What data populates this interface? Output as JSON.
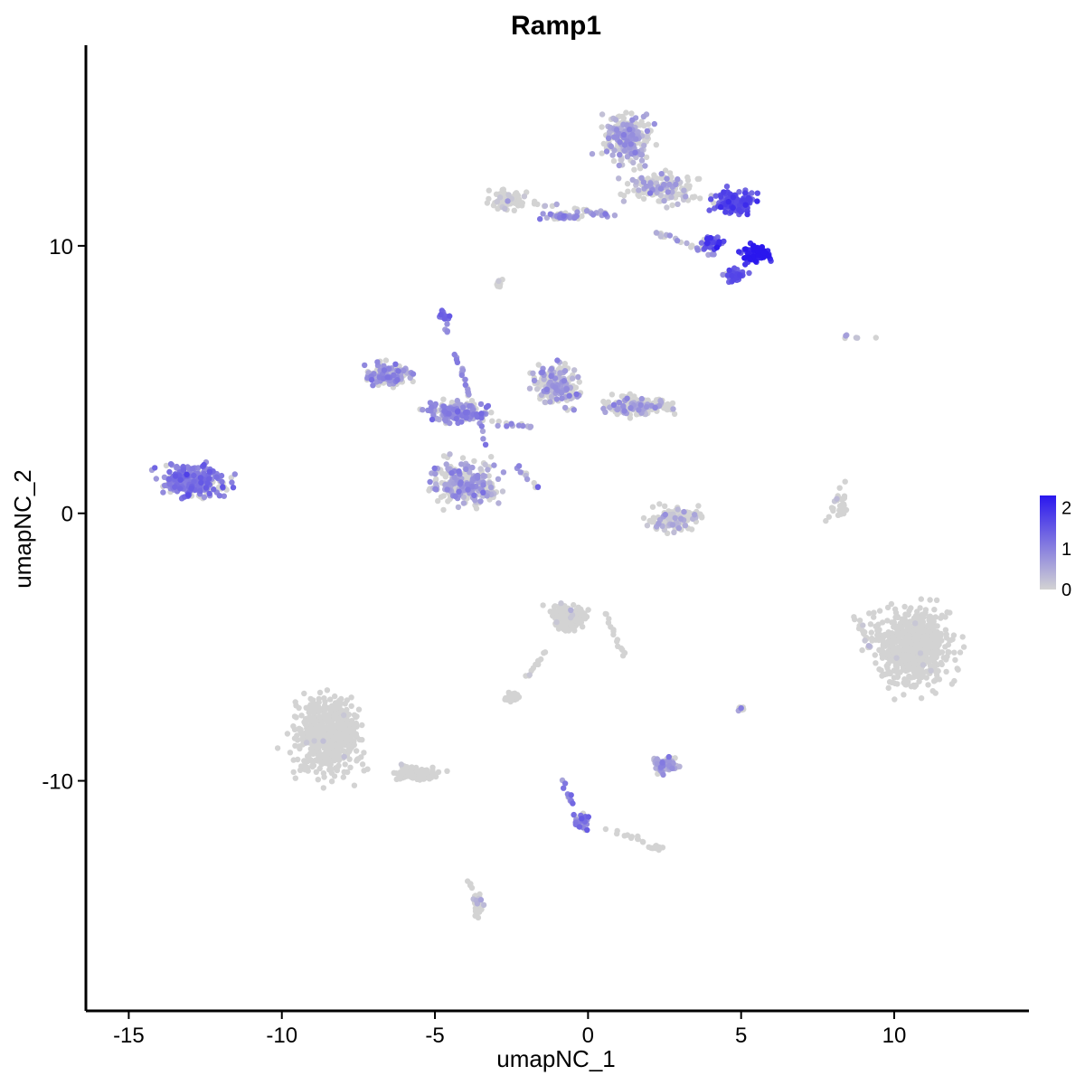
{
  "chart_data": {
    "type": "scatter",
    "title": "Ramp1",
    "xlabel": "umapNC_1",
    "ylabel": "umapNC_2",
    "xlim": [
      -16.4,
      14.4
    ],
    "ylim": [
      -18.6,
      17.5
    ],
    "x_ticks": [
      -15,
      -10,
      -5,
      0,
      5,
      10
    ],
    "x_tick_labels": [
      "-15",
      "-10",
      "-5",
      "0",
      "5",
      "10"
    ],
    "y_ticks": [
      -10,
      0,
      10
    ],
    "y_tick_labels": [
      "-10",
      "0",
      "10"
    ],
    "grid": false,
    "color_scale": {
      "low_color": "#d3d3d3",
      "high_color": "#2a17ee",
      "min": 0,
      "max": 2.3,
      "ticks": [
        0,
        1,
        2
      ],
      "tick_labels": [
        "0",
        "1",
        "2"
      ],
      "legend_position": "right"
    },
    "clusters": [
      {
        "cx": 1.3,
        "cy": 14.0,
        "rx": 1.3,
        "ry": 1.5,
        "n": 260,
        "expr_mean": 0.55,
        "expr_frac": 0.45
      },
      {
        "cx": 2.4,
        "cy": 12.2,
        "rx": 1.8,
        "ry": 0.9,
        "n": 160,
        "expr_mean": 0.5,
        "expr_frac": 0.35
      },
      {
        "cx": 4.8,
        "cy": 11.6,
        "rx": 1.1,
        "ry": 0.7,
        "n": 120,
        "expr_mean": 1.6,
        "expr_frac": 0.9
      },
      {
        "cx": 5.5,
        "cy": 9.7,
        "rx": 0.8,
        "ry": 0.45,
        "n": 110,
        "expr_mean": 2.0,
        "expr_frac": 0.95
      },
      {
        "cx": 4.8,
        "cy": 8.9,
        "rx": 0.55,
        "ry": 0.4,
        "n": 60,
        "expr_mean": 1.4,
        "expr_frac": 0.9
      },
      {
        "cx": 4.1,
        "cy": 10.1,
        "rx": 0.6,
        "ry": 0.35,
        "n": 40,
        "expr_mean": 1.6,
        "expr_frac": 0.8
      },
      {
        "cx": -2.6,
        "cy": 11.7,
        "rx": 0.9,
        "ry": 0.5,
        "n": 110,
        "expr_mean": 0.2,
        "expr_frac": 0.1
      },
      {
        "cx": -0.8,
        "cy": 11.1,
        "rx": 1.0,
        "ry": 0.2,
        "n": 40,
        "expr_mean": 0.8,
        "expr_frac": 0.6
      },
      {
        "cx": -2.9,
        "cy": 8.6,
        "rx": 0.2,
        "ry": 0.25,
        "n": 10,
        "expr_mean": 0.1,
        "expr_frac": 0.1
      },
      {
        "cx": -4.7,
        "cy": 7.4,
        "rx": 0.25,
        "ry": 0.3,
        "n": 20,
        "expr_mean": 1.2,
        "expr_frac": 1.0
      },
      {
        "cx": -6.5,
        "cy": 5.2,
        "rx": 1.2,
        "ry": 0.7,
        "n": 150,
        "expr_mean": 0.7,
        "expr_frac": 0.5
      },
      {
        "cx": -4.3,
        "cy": 3.8,
        "rx": 1.4,
        "ry": 0.6,
        "n": 170,
        "expr_mean": 0.8,
        "expr_frac": 0.55
      },
      {
        "cx": -4.0,
        "cy": 1.1,
        "rx": 1.7,
        "ry": 1.2,
        "n": 300,
        "expr_mean": 0.6,
        "expr_frac": 0.45
      },
      {
        "cx": -1.0,
        "cy": 4.8,
        "rx": 1.1,
        "ry": 1.2,
        "n": 200,
        "expr_mean": 0.6,
        "expr_frac": 0.45
      },
      {
        "cx": 1.6,
        "cy": 4.0,
        "rx": 1.7,
        "ry": 0.6,
        "n": 190,
        "expr_mean": 0.5,
        "expr_frac": 0.35
      },
      {
        "cx": -12.9,
        "cy": 1.2,
        "rx": 1.6,
        "ry": 0.9,
        "n": 330,
        "expr_mean": 1.0,
        "expr_frac": 0.75
      },
      {
        "cx": 2.8,
        "cy": -0.2,
        "rx": 1.2,
        "ry": 0.7,
        "n": 130,
        "expr_mean": 0.3,
        "expr_frac": 0.2
      },
      {
        "cx": 8.3,
        "cy": 0.3,
        "rx": 0.3,
        "ry": 0.8,
        "n": 20,
        "expr_mean": 0.0,
        "expr_frac": 0.05
      },
      {
        "cx": 10.6,
        "cy": -5.0,
        "rx": 1.9,
        "ry": 2.3,
        "n": 620,
        "expr_mean": 0.0,
        "expr_frac": 0.01
      },
      {
        "cx": -0.6,
        "cy": -3.9,
        "rx": 1.0,
        "ry": 0.8,
        "n": 150,
        "expr_mean": 0.1,
        "expr_frac": 0.03
      },
      {
        "cx": -2.5,
        "cy": -6.9,
        "rx": 0.45,
        "ry": 0.3,
        "n": 35,
        "expr_mean": 0.0,
        "expr_frac": 0.03
      },
      {
        "cx": -8.5,
        "cy": -8.3,
        "rx": 1.7,
        "ry": 2.1,
        "n": 650,
        "expr_mean": 0.0,
        "expr_frac": 0.01
      },
      {
        "cx": -5.6,
        "cy": -9.7,
        "rx": 1.2,
        "ry": 0.45,
        "n": 80,
        "expr_mean": 0.0,
        "expr_frac": 0.03
      },
      {
        "cx": 2.5,
        "cy": -9.4,
        "rx": 0.6,
        "ry": 0.4,
        "n": 80,
        "expr_mean": 0.6,
        "expr_frac": 0.6
      },
      {
        "cx": -0.2,
        "cy": -11.5,
        "rx": 0.3,
        "ry": 0.5,
        "n": 35,
        "expr_mean": 1.2,
        "expr_frac": 0.7
      },
      {
        "cx": 2.2,
        "cy": -12.5,
        "rx": 0.35,
        "ry": 0.15,
        "n": 15,
        "expr_mean": 0.0,
        "expr_frac": 0.05
      },
      {
        "cx": -3.6,
        "cy": -14.6,
        "rx": 0.3,
        "ry": 0.6,
        "n": 25,
        "expr_mean": 0.3,
        "expr_frac": 0.3
      },
      {
        "cx": 5.0,
        "cy": -7.3,
        "rx": 0.15,
        "ry": 0.15,
        "n": 10,
        "expr_mean": 0.5,
        "expr_frac": 0.4
      },
      {
        "cx": 8.7,
        "cy": 6.6,
        "rx": 1.0,
        "ry": 0.15,
        "n": 6,
        "expr_mean": 0.4,
        "expr_frac": 0.4
      }
    ],
    "bridges": [
      {
        "from": [
          -1.9,
          11.6
        ],
        "to": [
          1.2,
          11.1
        ],
        "n": 30,
        "expr_mean": 0.6,
        "expr_frac": 0.5
      },
      {
        "from": [
          2.2,
          10.5
        ],
        "to": [
          4.1,
          9.7
        ],
        "n": 25,
        "expr_mean": 0.6,
        "expr_frac": 0.5
      },
      {
        "from": [
          -4.7,
          7.2
        ],
        "to": [
          -3.3,
          2.5
        ],
        "n": 35,
        "expr_mean": 0.8,
        "expr_frac": 0.7
      },
      {
        "from": [
          -2.3,
          1.7
        ],
        "to": [
          -1.3,
          0.6
        ],
        "n": 12,
        "expr_mean": 0.7,
        "expr_frac": 0.6
      },
      {
        "from": [
          -5.6,
          3.9
        ],
        "to": [
          -1.8,
          3.2
        ],
        "n": 30,
        "expr_mean": 0.7,
        "expr_frac": 0.6
      },
      {
        "from": [
          0.5,
          -3.6
        ],
        "to": [
          1.2,
          -5.4
        ],
        "n": 15,
        "expr_mean": 0.0,
        "expr_frac": 0.05
      },
      {
        "from": [
          -1.2,
          -4.8
        ],
        "to": [
          -2.0,
          -6.2
        ],
        "n": 12,
        "expr_mean": 0.0,
        "expr_frac": 0.05
      },
      {
        "from": [
          -0.8,
          -10.0
        ],
        "to": [
          -0.3,
          -11.8
        ],
        "n": 15,
        "expr_mean": 1.0,
        "expr_frac": 0.7
      },
      {
        "from": [
          0.3,
          -11.7
        ],
        "to": [
          2.0,
          -12.3
        ],
        "n": 12,
        "expr_mean": 0.0,
        "expr_frac": 0.05
      },
      {
        "from": [
          -3.9,
          -13.6
        ],
        "to": [
          -3.5,
          -15.5
        ],
        "n": 12,
        "expr_mean": 0.0,
        "expr_frac": 0.05
      },
      {
        "from": [
          7.8,
          -0.3
        ],
        "to": [
          8.4,
          1.2
        ],
        "n": 12,
        "expr_mean": 0.0,
        "expr_frac": 0.05
      },
      {
        "from": [
          8.7,
          -3.8
        ],
        "to": [
          9.2,
          -5.0
        ],
        "n": 15,
        "expr_mean": 0.2,
        "expr_frac": 0.2
      }
    ]
  }
}
